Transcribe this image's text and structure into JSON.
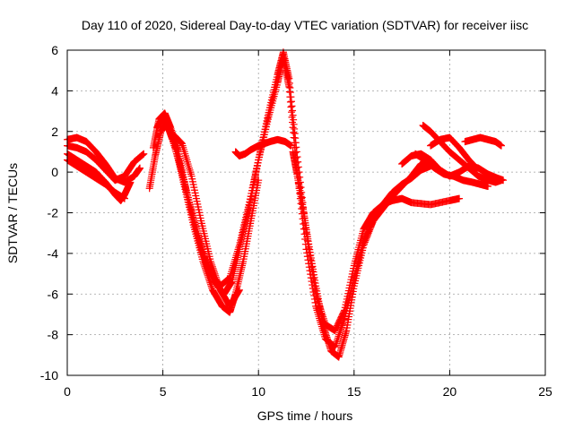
{
  "chart_data": {
    "type": "scatter",
    "title": "Day 110 of 2020, Sidereal Day-to-day VTEC variation (SDTVAR) for receiver iisc",
    "xlabel": "GPS time / hours",
    "ylabel": "SDTVAR / TECUs",
    "xlim": [
      0,
      25
    ],
    "ylim": [
      -10,
      6
    ],
    "xticks": [
      0,
      5,
      10,
      15,
      20,
      25
    ],
    "yticks": [
      -10,
      -8,
      -6,
      -4,
      -2,
      0,
      2,
      4,
      6
    ],
    "grid": true,
    "marker": "+",
    "color": "#ff0000",
    "series": [
      {
        "x": [
          0,
          0.5,
          1,
          1.5,
          2,
          2.5,
          3,
          3.5,
          3.8
        ],
        "y": [
          1.6,
          1.7,
          1.5,
          1.0,
          0.4,
          -0.3,
          -0.5,
          -0.2,
          0.2
        ]
      },
      {
        "x": [
          0,
          0.5,
          1,
          1.5,
          2,
          2.5,
          3,
          3.5,
          4
        ],
        "y": [
          1.3,
          1.2,
          1.0,
          0.6,
          0.1,
          -0.4,
          -0.2,
          0.5,
          0.9
        ]
      },
      {
        "x": [
          0,
          0.5,
          1,
          1.5,
          2,
          2.5,
          2.8,
          3,
          3.3
        ],
        "y": [
          0.9,
          0.6,
          0.3,
          0.0,
          -0.5,
          -1.1,
          -1.4,
          -1.1,
          -0.5
        ]
      },
      {
        "x": [
          0,
          0.5,
          1,
          1.5,
          2,
          2.5,
          3
        ],
        "y": [
          0.6,
          0.3,
          0.0,
          -0.3,
          -0.6,
          -1.0,
          -1.3
        ]
      },
      {
        "x": [
          4.3,
          4.6,
          4.9,
          5.2,
          5.5,
          6,
          6.5,
          7,
          7.5,
          8,
          8.5,
          9,
          9.5,
          10,
          10.5,
          11,
          11.3,
          11.6,
          12,
          12.5,
          13,
          13.5,
          14,
          14.5,
          15,
          15.5,
          16,
          16.5,
          17,
          17.5,
          18,
          19,
          20,
          20.5
        ],
        "y": [
          -0.8,
          0.8,
          2.0,
          2.4,
          1.6,
          0.0,
          -2.0,
          -3.8,
          -5.0,
          -5.6,
          -5.2,
          -3.6,
          -1.6,
          0.6,
          2.8,
          4.8,
          5.9,
          4.6,
          1.0,
          -3.0,
          -6.0,
          -7.5,
          -7.8,
          -6.8,
          -4.6,
          -2.8,
          -2.0,
          -1.6,
          -1.4,
          -1.3,
          -1.5,
          -1.6,
          -1.4,
          -1.3
        ]
      },
      {
        "x": [
          4.5,
          4.8,
          5.1,
          5.4,
          5.8,
          6.2,
          6.7,
          7.2,
          7.7,
          8.2,
          8.6,
          9,
          9.5,
          10,
          10.5,
          11,
          11.3,
          11.6,
          12,
          12.5,
          13,
          13.5,
          14,
          14.5,
          15,
          15.5,
          16,
          16.5,
          17,
          17.5,
          18,
          18.5,
          19
        ],
        "y": [
          1.2,
          2.6,
          2.9,
          2.2,
          1.0,
          -0.8,
          -2.6,
          -4.2,
          -5.4,
          -6.0,
          -5.4,
          -3.8,
          -1.8,
          0.6,
          2.6,
          4.4,
          5.6,
          4.2,
          0.2,
          -3.8,
          -6.6,
          -8.2,
          -8.6,
          -7.2,
          -5.2,
          -3.4,
          -2.4,
          -1.8,
          -1.2,
          -0.7,
          -0.2,
          0.4,
          0.6
        ]
      },
      {
        "x": [
          4.7,
          5,
          5.3,
          5.7,
          6.1,
          6.6,
          7.1,
          7.6,
          8.1,
          8.5,
          8.8,
          9.2,
          9.6,
          10
        ],
        "y": [
          2.2,
          2.7,
          2.3,
          1.1,
          -0.6,
          -2.6,
          -4.4,
          -5.8,
          -6.6,
          -6.9,
          -6.0,
          -4.4,
          -2.4,
          -0.4
        ]
      },
      {
        "x": [
          5.6,
          6,
          6.5,
          7,
          7.5,
          8,
          8.5,
          9
        ],
        "y": [
          1.8,
          1.4,
          -0.2,
          -2.4,
          -4.4,
          -5.8,
          -6.6,
          -5.8
        ]
      },
      {
        "x": [
          8.8,
          9,
          9.3,
          9.6,
          10,
          10.3,
          10.6,
          11,
          11.4,
          11.7
        ],
        "y": [
          1.0,
          0.8,
          0.9,
          1.1,
          1.3,
          1.4,
          1.5,
          1.6,
          1.5,
          1.3
        ]
      },
      {
        "x": [
          11.8,
          12,
          12.3,
          12.6,
          13,
          13.4,
          13.8,
          14.2,
          14.6,
          15,
          15.5,
          16,
          16.5,
          17,
          17.5,
          18,
          18.5,
          19
        ],
        "y": [
          1.0,
          0.0,
          -1.6,
          -3.4,
          -5.6,
          -7.6,
          -8.8,
          -9.1,
          -7.8,
          -5.6,
          -3.6,
          -2.4,
          -1.6,
          -1.0,
          -0.6,
          -0.3,
          0.1,
          0.3
        ]
      },
      {
        "x": [
          18.6,
          19,
          19.5,
          20,
          20.5,
          21,
          21.5,
          22,
          22.4,
          22.7
        ],
        "y": [
          2.3,
          2.0,
          1.5,
          1.0,
          0.6,
          0.2,
          -0.2,
          -0.4,
          -0.5,
          -0.4
        ]
      },
      {
        "x": [
          17.5,
          18,
          18.5,
          19,
          19.5,
          20,
          20.5,
          21,
          21.5,
          22,
          22.5,
          22.8
        ],
        "y": [
          0.4,
          0.8,
          0.9,
          0.6,
          0.1,
          -0.2,
          0.0,
          0.3,
          0.2,
          -0.1,
          -0.3,
          -0.4
        ]
      },
      {
        "x": [
          18.2,
          18.7,
          19.2,
          19.7,
          20.2,
          20.7,
          21.2,
          21.6,
          22
        ],
        "y": [
          0.9,
          0.6,
          0.2,
          -0.1,
          -0.2,
          -0.4,
          -0.5,
          -0.6,
          -0.7
        ]
      },
      {
        "x": [
          20.8,
          21.2,
          21.6,
          22,
          22.4,
          22.7
        ],
        "y": [
          1.5,
          1.6,
          1.7,
          1.6,
          1.5,
          1.3
        ]
      },
      {
        "x": [
          19,
          19.5,
          20,
          20.5,
          21,
          21.3
        ],
        "y": [
          1.3,
          1.6,
          1.7,
          1.2,
          0.6,
          0.3
        ]
      }
    ]
  }
}
